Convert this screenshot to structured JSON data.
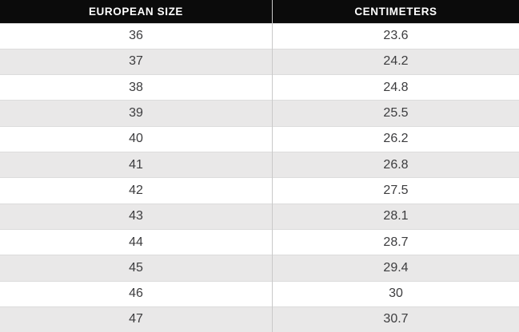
{
  "chart_data": {
    "type": "table",
    "columns": [
      "EUROPEAN SIZE",
      "CENTIMETERS"
    ],
    "rows": [
      [
        "36",
        "23.6"
      ],
      [
        "37",
        "24.2"
      ],
      [
        "38",
        "24.8"
      ],
      [
        "39",
        "25.5"
      ],
      [
        "40",
        "26.2"
      ],
      [
        "41",
        "26.8"
      ],
      [
        "42",
        "27.5"
      ],
      [
        "43",
        "28.1"
      ],
      [
        "44",
        "28.7"
      ],
      [
        "45",
        "29.4"
      ],
      [
        "46",
        "30"
      ],
      [
        "47",
        "30.7"
      ]
    ],
    "layout": {
      "zebra_striping": true,
      "header_position": "top",
      "column_alignment": "center"
    }
  },
  "colors": {
    "header_bg": "#0b0b0b",
    "header_text": "#ffffff",
    "row_odd_bg": "#ffffff",
    "row_even_bg": "#e9e8e8",
    "body_text": "#3c3c3e",
    "column_divider": "#c9c9c9",
    "row_divider": "#dcdcdc"
  }
}
